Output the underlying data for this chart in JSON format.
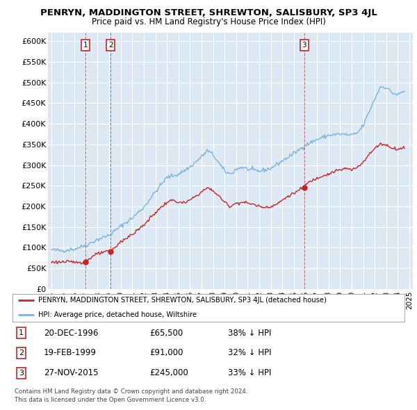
{
  "title": "PENRYN, MADDINGTON STREET, SHREWTON, SALISBURY, SP3 4JL",
  "subtitle": "Price paid vs. HM Land Registry's House Price Index (HPI)",
  "ylabel_ticks": [
    "£0",
    "£50K",
    "£100K",
    "£150K",
    "£200K",
    "£250K",
    "£300K",
    "£350K",
    "£400K",
    "£450K",
    "£500K",
    "£550K",
    "£600K"
  ],
  "ytick_values": [
    0,
    50000,
    100000,
    150000,
    200000,
    250000,
    300000,
    350000,
    400000,
    450000,
    500000,
    550000,
    600000
  ],
  "ylim": [
    0,
    620000
  ],
  "background_color": "#dce9f5",
  "grid_color": "#ffffff",
  "hpi_color": "#7ab4d8",
  "price_color": "#cc2222",
  "dashed_line_color": "#cc2222",
  "marker_color": "#cc2222",
  "purchases": [
    {
      "num": 1,
      "date": "20-DEC-1996",
      "price": 65500,
      "year": 1996.96,
      "hpi_pct": "38% ↓ HPI"
    },
    {
      "num": 2,
      "date": "19-FEB-1999",
      "price": 91000,
      "year": 1999.13,
      "hpi_pct": "32% ↓ HPI"
    },
    {
      "num": 3,
      "date": "27-NOV-2015",
      "price": 245000,
      "year": 2015.9,
      "hpi_pct": "33% ↓ HPI"
    }
  ],
  "legend_house_label": "PENRYN, MADDINGTON STREET, SHREWTON, SALISBURY, SP3 4JL (detached house)",
  "legend_hpi_label": "HPI: Average price, detached house, Wiltshire",
  "footer1": "Contains HM Land Registry data © Crown copyright and database right 2024.",
  "footer2": "This data is licensed under the Open Government Licence v3.0.",
  "xtick_years": [
    1994,
    1995,
    1996,
    1997,
    1998,
    1999,
    2000,
    2001,
    2002,
    2003,
    2004,
    2005,
    2006,
    2007,
    2008,
    2009,
    2010,
    2011,
    2012,
    2013,
    2014,
    2015,
    2016,
    2017,
    2018,
    2019,
    2020,
    2021,
    2022,
    2023,
    2024,
    2025
  ],
  "xlim": [
    1993.7,
    2025.3
  ]
}
